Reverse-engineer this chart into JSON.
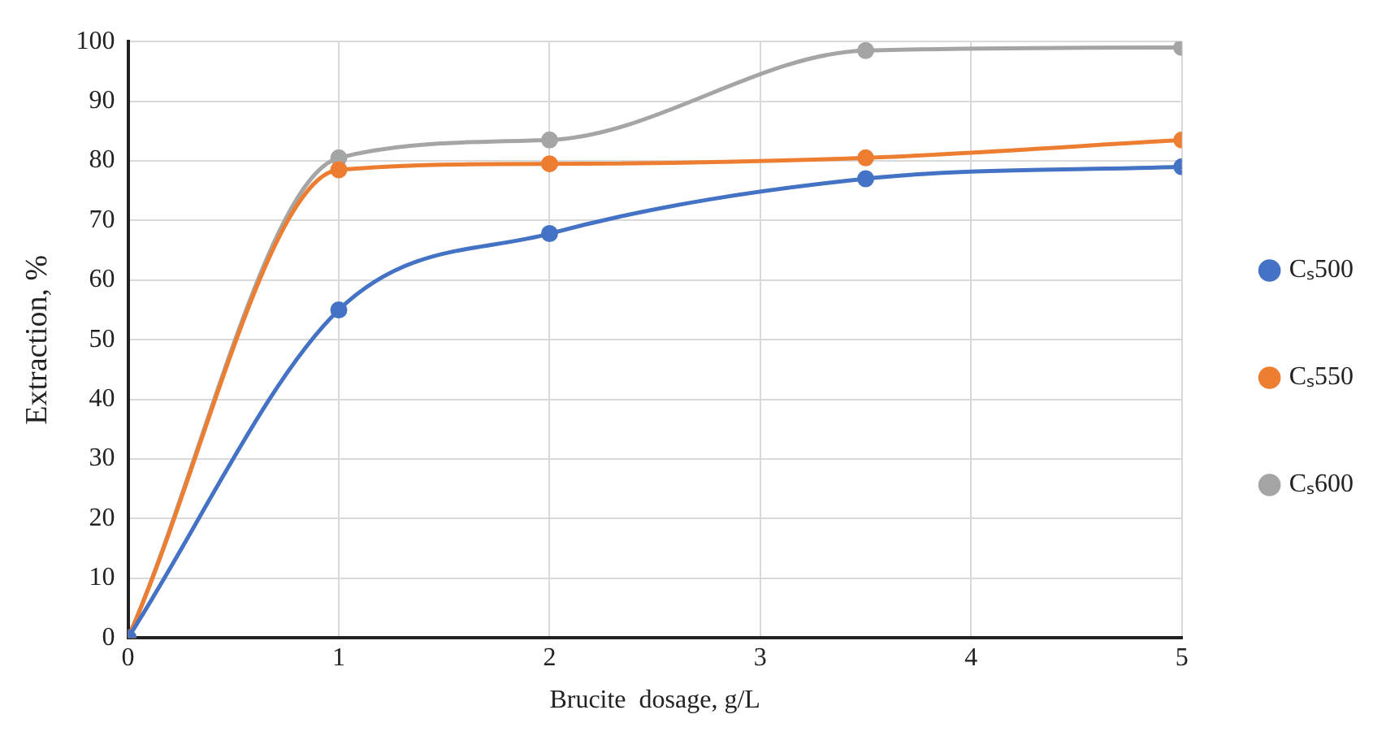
{
  "chart_data": {
    "type": "line",
    "xlabel": "Brucite  dosage, g/L",
    "ylabel": "Extraction, %",
    "x": [
      0,
      1,
      2,
      3.5,
      5
    ],
    "series": [
      {
        "name": "Cₛ500",
        "color": "#4472c4",
        "values": [
          0,
          55,
          67.8,
          77,
          79
        ]
      },
      {
        "name": "Cₛ550",
        "color": "#ed7d31",
        "values": [
          0,
          78.5,
          79.5,
          80.5,
          83.5
        ]
      },
      {
        "name": "Cₛ600",
        "color": "#a5a5a5",
        "values": [
          0,
          80.5,
          83.5,
          98.5,
          99
        ]
      }
    ],
    "xlim": [
      0,
      5
    ],
    "xticks": [
      0,
      1,
      2,
      3,
      4,
      5
    ],
    "ylim": [
      0,
      100
    ],
    "yticks": [
      0,
      10,
      20,
      30,
      40,
      50,
      60,
      70,
      80,
      90,
      100
    ],
    "grid": true,
    "legend": "right",
    "marker": "circle",
    "line_style": "solid"
  }
}
